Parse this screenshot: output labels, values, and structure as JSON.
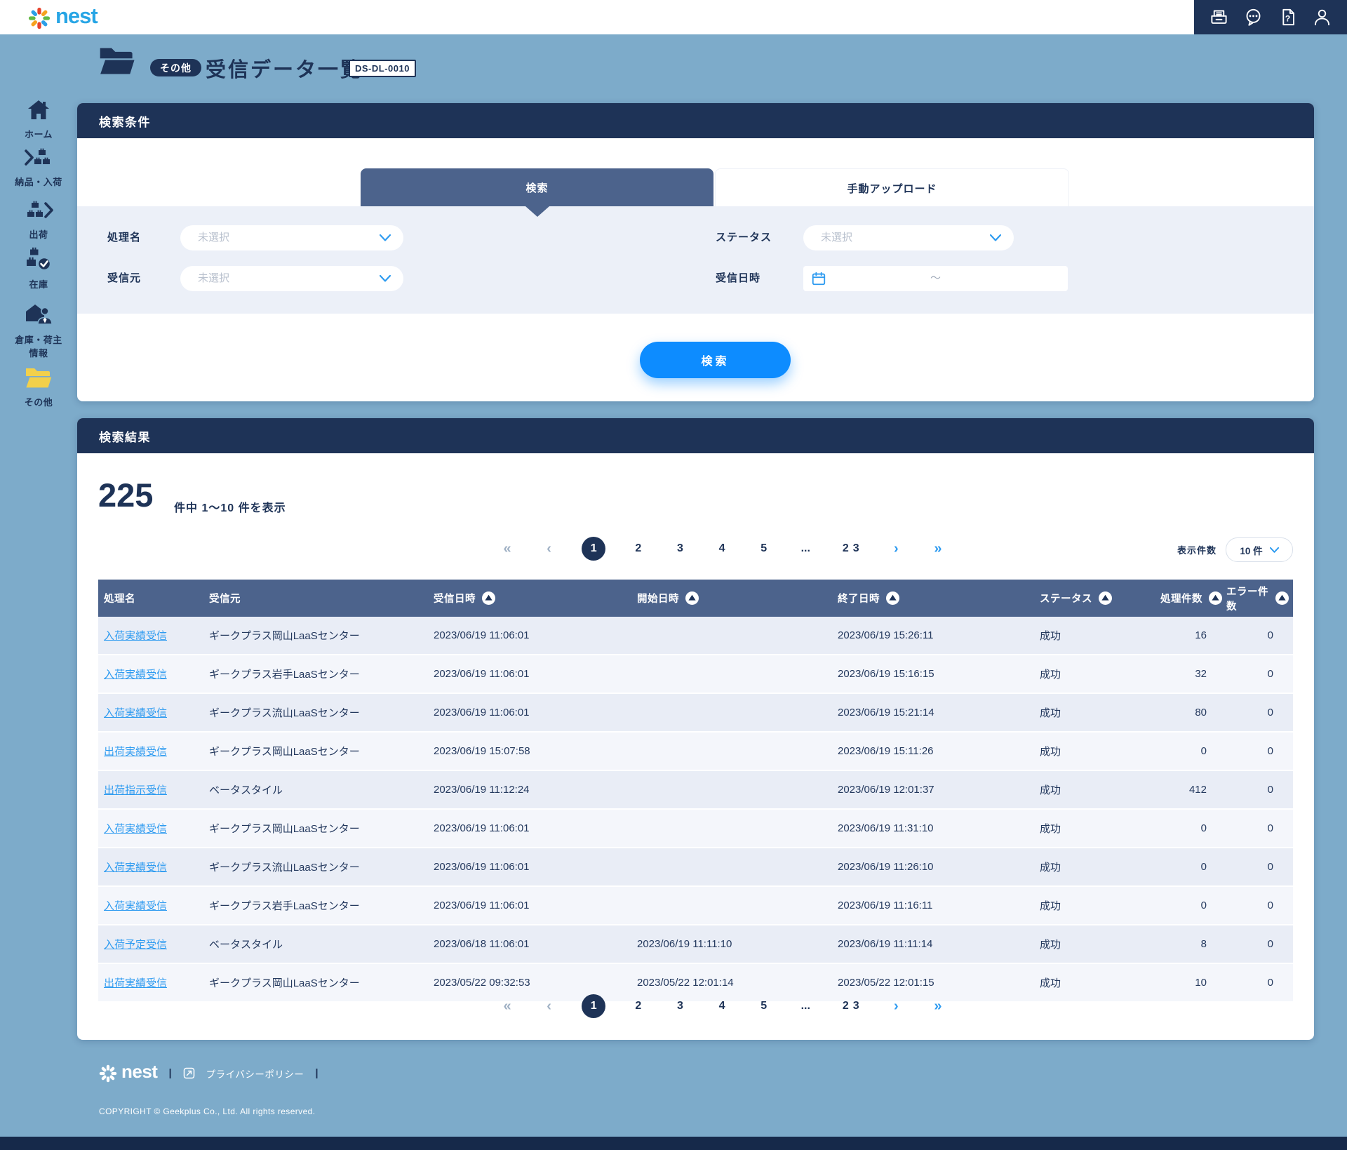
{
  "colors": {
    "navy": "#1e3357",
    "slate": "#4c638c",
    "page_bg": "#7dabca",
    "button_blue": "#0d8cff",
    "link_blue": "#2e9bf0",
    "logo_blue": "#27a5e5",
    "folder_yellow": "#f2d04b"
  },
  "topbar": {
    "logo_text": "nest",
    "icons": [
      "fax-icon",
      "chat-icon",
      "help-icon",
      "user-icon"
    ]
  },
  "page": {
    "category_badge": "その他",
    "title": "受信データ一覧",
    "code": "DS-DL-0010"
  },
  "sidebar": {
    "items": [
      {
        "icon": "home-icon",
        "label": "ホーム",
        "active": false
      },
      {
        "icon": "inbound-icon",
        "label": "納品・入荷",
        "active": false
      },
      {
        "icon": "shipping-icon",
        "label": "出荷",
        "active": false
      },
      {
        "icon": "stock-icon",
        "label": "在庫",
        "active": false
      },
      {
        "icon": "warehouse-shipper-icon",
        "label": "倉庫・荷主",
        "label2": "情報",
        "active": false
      },
      {
        "icon": "other-folder-icon",
        "label": "その他",
        "active": true
      }
    ]
  },
  "search_panel": {
    "title": "検索条件",
    "tabs": [
      {
        "label": "検索",
        "active": true
      },
      {
        "label": "手動アップロード",
        "active": false
      }
    ],
    "fields": {
      "processing_name": {
        "label": "処理名",
        "placeholder": "未選択"
      },
      "sender": {
        "label": "受信元",
        "placeholder": "未選択"
      },
      "status": {
        "label": "ステータス",
        "placeholder": "未選択"
      },
      "received_at": {
        "label": "受信日時",
        "separator": "～"
      }
    },
    "submit_label": "検索"
  },
  "results_panel": {
    "title": "検索結果",
    "total": "225",
    "range_text": "件中 1～10 件を表示",
    "display_count": {
      "label": "表示件数",
      "value": "10 件"
    }
  },
  "pagination": {
    "first": "«",
    "prev": "‹",
    "pages": [
      "1",
      "2",
      "3",
      "4",
      "5"
    ],
    "ellipsis": "...",
    "far_page": "23",
    "next": "›",
    "last": "»",
    "active_page": "1"
  },
  "table": {
    "columns": [
      {
        "label": "処理名",
        "sortable": false
      },
      {
        "label": "受信元",
        "sortable": false
      },
      {
        "label": "受信日時",
        "sortable": true
      },
      {
        "label": "開始日時",
        "sortable": true
      },
      {
        "label": "終了日時",
        "sortable": true
      },
      {
        "label": "ステータス",
        "sortable": true
      },
      {
        "label": "処理件数",
        "sortable": true
      },
      {
        "label": "エラー件数",
        "sortable": true
      }
    ],
    "rows": [
      [
        "入荷実績受信",
        "ギークプラス岡山LaaSセンター",
        "2023/06/19 11:06:01",
        "",
        "2023/06/19 15:26:11",
        "成功",
        "16",
        "0"
      ],
      [
        "入荷実績受信",
        "ギークプラス岩手LaaSセンター",
        "2023/06/19 11:06:01",
        "",
        "2023/06/19 15:16:15",
        "成功",
        "32",
        "0"
      ],
      [
        "入荷実績受信",
        "ギークプラス流山LaaSセンター",
        "2023/06/19 11:06:01",
        "",
        "2023/06/19 15:21:14",
        "成功",
        "80",
        "0"
      ],
      [
        "出荷実績受信",
        "ギークプラス岡山LaaSセンター",
        "2023/06/19 15:07:58",
        "",
        "2023/06/19 15:11:26",
        "成功",
        "0",
        "0"
      ],
      [
        "出荷指示受信",
        "ベータスタイル",
        "2023/06/19 11:12:24",
        "",
        "2023/06/19 12:01:37",
        "成功",
        "412",
        "0"
      ],
      [
        "入荷実績受信",
        "ギークプラス岡山LaaSセンター",
        "2023/06/19 11:06:01",
        "",
        "2023/06/19 11:31:10",
        "成功",
        "0",
        "0"
      ],
      [
        "入荷実績受信",
        "ギークプラス流山LaaSセンター",
        "2023/06/19 11:06:01",
        "",
        "2023/06/19 11:26:10",
        "成功",
        "0",
        "0"
      ],
      [
        "入荷実績受信",
        "ギークプラス岩手LaaSセンター",
        "2023/06/19 11:06:01",
        "",
        "2023/06/19 11:16:11",
        "成功",
        "0",
        "0"
      ],
      [
        "入荷予定受信",
        "ベータスタイル",
        "2023/06/18 11:06:01",
        "2023/06/19 11:11:10",
        "2023/06/19 11:11:14",
        "成功",
        "8",
        "0"
      ],
      [
        "出荷実績受信",
        "ギークプラス岡山LaaSセンター",
        "2023/05/22 09:32:53",
        "2023/05/22 12:01:14",
        "2023/05/22 12:01:15",
        "成功",
        "10",
        "0"
      ]
    ]
  },
  "footer": {
    "logo_text": "nest",
    "separator": "|",
    "privacy_label": "プライバシーポリシー",
    "copyright": "COPYRIGHT © Geekplus Co., Ltd. All rights reserved."
  }
}
